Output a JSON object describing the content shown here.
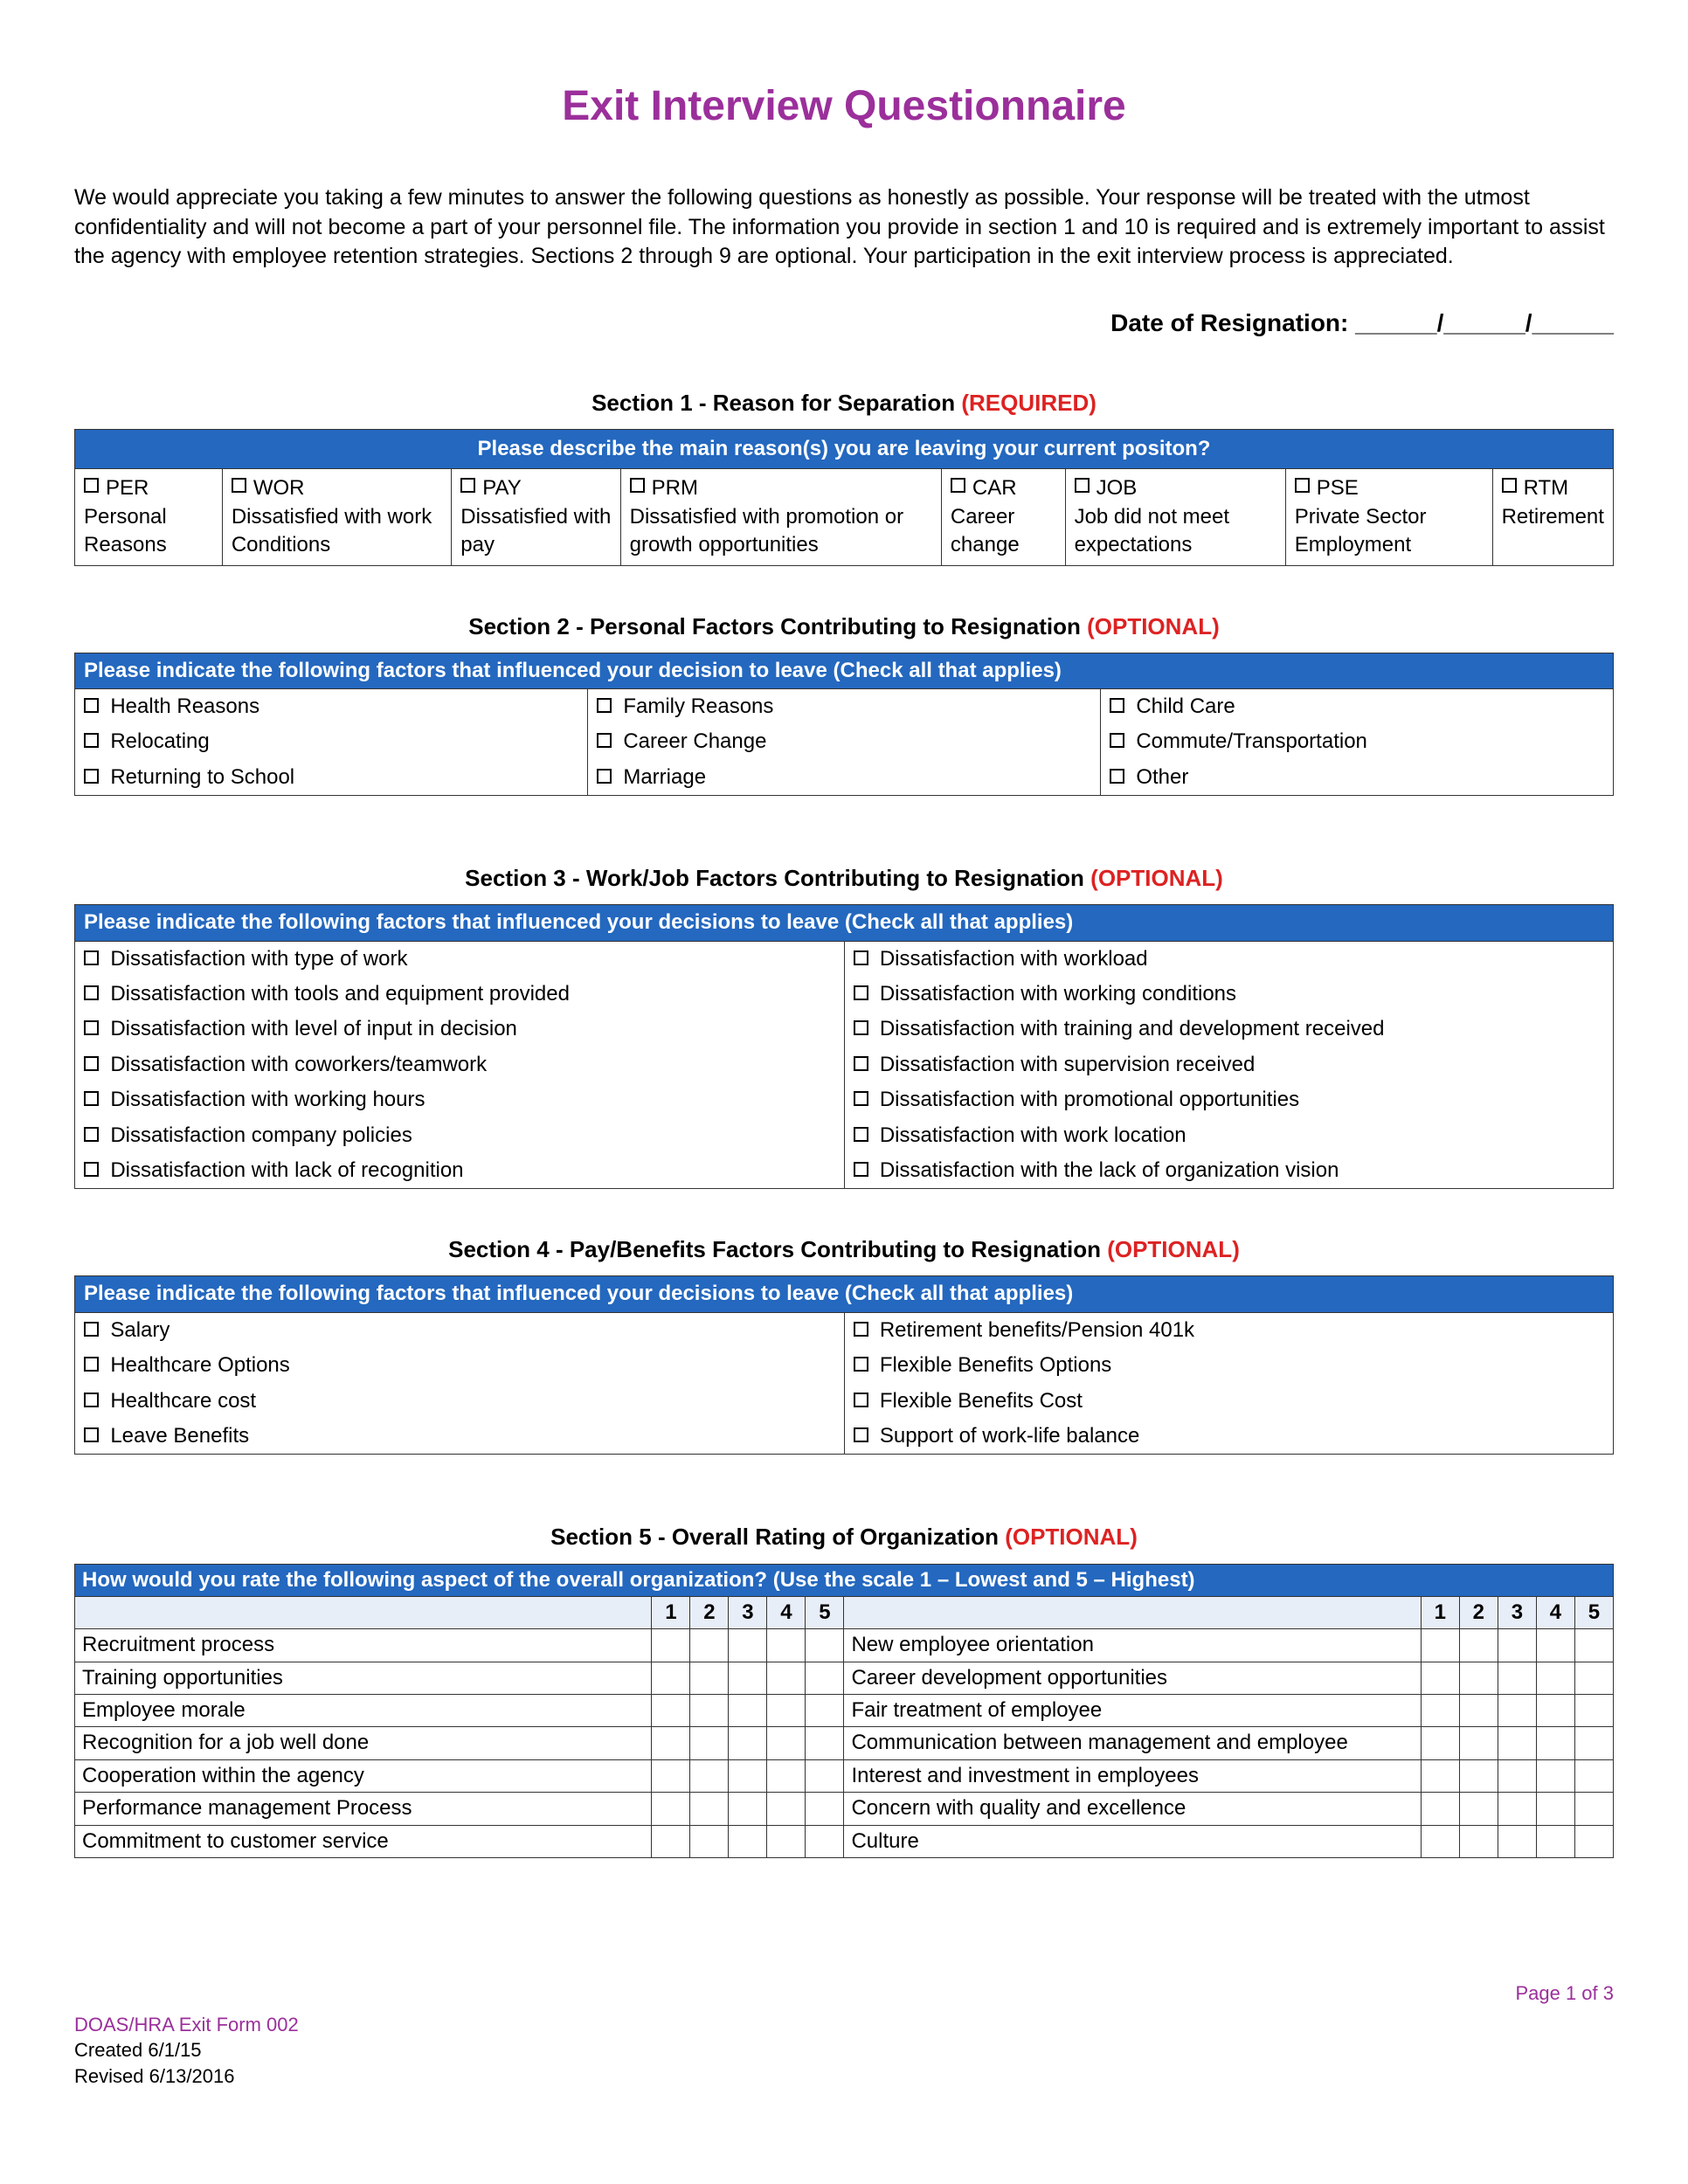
{
  "title": "Exit Interview Questionnaire",
  "intro": "We would appreciate you taking a few minutes to answer the following questions as honestly as possible. Your response will be treated with the utmost confidentiality and will not become a part of your personnel file. The information you provide in section 1 and 10 is required and is extremely important to assist the agency with employee retention strategies. Sections 2 through 9 are optional. Your participation in the exit interview process is appreciated.",
  "date_label": "Date of Resignation: ______/______/______",
  "section1": {
    "title_main": "Section 1 - Reason for Separation ",
    "title_flag": "(REQUIRED)",
    "header": "Please describe the main reason(s) you are leaving your current positon?",
    "cells": [
      {
        "code": "PER",
        "desc": "Personal Reasons"
      },
      {
        "code": "WOR",
        "desc": "Dissatisfied with work Conditions"
      },
      {
        "code": "PAY",
        "desc": "Dissatisfied with pay"
      },
      {
        "code": "PRM",
        "desc": "Dissatisfied with promotion or growth opportunities"
      },
      {
        "code": "CAR",
        "desc": "Career change"
      },
      {
        "code": "JOB",
        "desc": "Job did not meet expectations"
      },
      {
        "code": "PSE",
        "desc": "Private Sector Employment"
      },
      {
        "code": "RTM",
        "desc": "Retirement"
      }
    ]
  },
  "section2": {
    "title_main": "Section 2 - Personal Factors Contributing to Resignation ",
    "title_flag": "(OPTIONAL)",
    "header": "Please indicate the following factors that influenced your decision to leave (Check all that applies)",
    "rows": [
      [
        "Health Reasons",
        "Family Reasons",
        "Child Care"
      ],
      [
        "Relocating",
        "Career Change",
        "Commute/Transportation"
      ],
      [
        "Returning to School",
        "Marriage",
        "Other"
      ]
    ]
  },
  "section3": {
    "title_main": "Section 3 - Work/Job Factors Contributing to Resignation ",
    "title_flag": "(OPTIONAL)",
    "header": "Please indicate the following factors that influenced your decisions to leave (Check all that applies)",
    "rows": [
      [
        "Dissatisfaction with type of work",
        "Dissatisfaction with workload"
      ],
      [
        "Dissatisfaction with tools and equipment provided",
        "Dissatisfaction with working conditions"
      ],
      [
        "Dissatisfaction with level of input in decision",
        "Dissatisfaction with training and development received"
      ],
      [
        "Dissatisfaction with coworkers/teamwork",
        "Dissatisfaction with supervision received"
      ],
      [
        "Dissatisfaction with working hours",
        "Dissatisfaction with promotional opportunities"
      ],
      [
        "Dissatisfaction company policies",
        "Dissatisfaction with work location"
      ],
      [
        "Dissatisfaction with lack of recognition",
        "Dissatisfaction with the lack of organization vision"
      ]
    ]
  },
  "section4": {
    "title_main": "Section 4 - Pay/Benefits Factors Contributing to Resignation ",
    "title_flag": "(OPTIONAL)",
    "header": "Please indicate the following factors that influenced your decisions to leave (Check all that applies)",
    "rows": [
      [
        "Salary",
        "Retirement benefits/Pension 401k"
      ],
      [
        "Healthcare Options",
        "Flexible Benefits Options"
      ],
      [
        "Healthcare cost",
        "Flexible Benefits Cost"
      ],
      [
        "Leave Benefits",
        "Support of work-life balance"
      ]
    ]
  },
  "section5": {
    "title_main": "Section 5 - Overall Rating of Organization ",
    "title_flag": "(OPTIONAL)",
    "header": "How would you rate the following aspect of the overall organization? (Use the scale 1 – Lowest and 5 – Highest)",
    "nums": [
      "1",
      "2",
      "3",
      "4",
      "5"
    ],
    "rows": [
      [
        "Recruitment process",
        "New employee orientation"
      ],
      [
        "Training opportunities",
        "Career development opportunities"
      ],
      [
        "Employee morale",
        "Fair treatment of employee"
      ],
      [
        "Recognition for a job well done",
        "Communication between management and employee"
      ],
      [
        "Cooperation within the agency",
        "Interest and investment in employees"
      ],
      [
        "Performance management Process",
        "Concern with quality and excellence"
      ],
      [
        "Commitment to customer service",
        "Culture"
      ]
    ]
  },
  "footer": {
    "page": "Page 1 of 3",
    "form_id": "DOAS/HRA Exit Form 002",
    "created": "Created 6/1/15",
    "revised": "Revised 6/13/2016"
  }
}
